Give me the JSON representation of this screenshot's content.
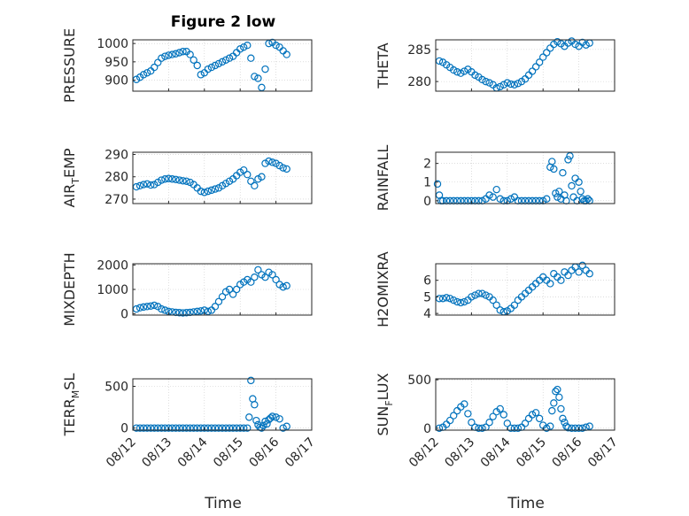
{
  "figure": {
    "title": "Figure 2 low",
    "xlabel": "Time",
    "x_ticks": [
      "08/12",
      "08/13",
      "08/14",
      "08/15",
      "08/16",
      "08/17"
    ],
    "marker_color": "#0072BD"
  },
  "chart_data": [
    {
      "type": "scatter",
      "title": "Figure 2 low",
      "ylabel": "PRESSURE",
      "ylabel_sub": "",
      "ylim": [
        870,
        1010
      ],
      "yticks": [
        900,
        950,
        1000
      ],
      "xlim": [
        0,
        5
      ],
      "x": [
        0.1,
        0.2,
        0.3,
        0.4,
        0.5,
        0.6,
        0.7,
        0.8,
        0.9,
        1.0,
        1.1,
        1.2,
        1.3,
        1.4,
        1.5,
        1.6,
        1.7,
        1.8,
        1.9,
        2.0,
        2.1,
        2.2,
        2.3,
        2.4,
        2.5,
        2.6,
        2.7,
        2.8,
        2.9,
        3.0,
        3.1,
        3.2,
        3.3,
        3.4,
        3.5,
        3.6,
        3.7,
        3.8,
        3.9,
        4.0,
        4.1,
        4.2,
        4.3
      ],
      "y": [
        902,
        908,
        915,
        920,
        925,
        935,
        948,
        960,
        965,
        968,
        970,
        972,
        975,
        978,
        978,
        970,
        955,
        940,
        915,
        920,
        930,
        935,
        940,
        945,
        950,
        955,
        960,
        965,
        975,
        985,
        990,
        995,
        960,
        910,
        905,
        880,
        930,
        1000,
        1003,
        995,
        990,
        980,
        970
      ]
    },
    {
      "type": "scatter",
      "ylabel": "THETA",
      "ylabel_sub": "",
      "ylim": [
        278.5,
        286.5
      ],
      "yticks": [
        280,
        285
      ],
      "xlim": [
        0,
        5
      ],
      "x": [
        0.1,
        0.2,
        0.3,
        0.4,
        0.5,
        0.6,
        0.7,
        0.8,
        0.9,
        1.0,
        1.1,
        1.2,
        1.3,
        1.4,
        1.5,
        1.6,
        1.7,
        1.8,
        1.9,
        2.0,
        2.1,
        2.2,
        2.3,
        2.4,
        2.5,
        2.6,
        2.7,
        2.8,
        2.9,
        3.0,
        3.1,
        3.2,
        3.3,
        3.4,
        3.5,
        3.6,
        3.7,
        3.8,
        3.9,
        4.0,
        4.1,
        4.2,
        4.3
      ],
      "y": [
        283.2,
        283.0,
        282.6,
        282.2,
        281.8,
        281.5,
        281.3,
        281.6,
        281.9,
        281.5,
        281.0,
        280.7,
        280.3,
        280.0,
        279.8,
        279.5,
        279.0,
        279.2,
        279.5,
        279.8,
        279.6,
        279.5,
        279.7,
        280.0,
        280.4,
        281.0,
        281.6,
        282.3,
        283.0,
        283.8,
        284.5,
        285.2,
        285.8,
        286.2,
        285.9,
        285.5,
        286.0,
        286.3,
        285.8,
        285.5,
        286.1,
        285.7,
        286.0
      ]
    },
    {
      "type": "scatter",
      "ylabel": "AIR",
      "ylabel_sub": "T",
      "ylabel_tail": "EMP",
      "ylim": [
        268,
        291
      ],
      "yticks": [
        270,
        280,
        290
      ],
      "xlim": [
        0,
        5
      ],
      "x": [
        0.1,
        0.2,
        0.3,
        0.4,
        0.5,
        0.6,
        0.7,
        0.8,
        0.9,
        1.0,
        1.1,
        1.2,
        1.3,
        1.4,
        1.5,
        1.6,
        1.7,
        1.8,
        1.9,
        2.0,
        2.1,
        2.2,
        2.3,
        2.4,
        2.5,
        2.6,
        2.7,
        2.8,
        2.9,
        3.0,
        3.1,
        3.2,
        3.3,
        3.4,
        3.5,
        3.6,
        3.7,
        3.8,
        3.9,
        4.0,
        4.1,
        4.2,
        4.3
      ],
      "y": [
        275.5,
        276,
        276.5,
        276.8,
        276.3,
        276.5,
        277.5,
        278.5,
        279,
        279.2,
        279,
        278.8,
        278.5,
        278.2,
        278,
        277.5,
        276.5,
        275,
        273.5,
        273,
        273.5,
        274,
        274.5,
        275,
        276,
        277,
        278,
        279,
        280.5,
        282,
        283,
        281,
        278,
        276,
        279,
        280,
        286,
        287,
        286.5,
        286,
        285,
        284,
        283.5
      ]
    },
    {
      "type": "scatter",
      "ylabel": "RAINFALL",
      "ylabel_sub": "",
      "ylim": [
        -0.15,
        2.6
      ],
      "yticks": [
        0,
        1,
        2
      ],
      "xlim": [
        0,
        5
      ],
      "x": [
        0.05,
        0.1,
        0.15,
        0.2,
        0.3,
        0.4,
        0.5,
        0.6,
        0.7,
        0.8,
        0.9,
        1.0,
        1.1,
        1.2,
        1.3,
        1.4,
        1.5,
        1.6,
        1.7,
        1.8,
        1.9,
        2.0,
        2.1,
        2.2,
        2.3,
        2.4,
        2.5,
        2.6,
        2.7,
        2.8,
        2.9,
        3.0,
        3.1,
        3.2,
        3.25,
        3.3,
        3.35,
        3.4,
        3.45,
        3.5,
        3.55,
        3.6,
        3.65,
        3.7,
        3.75,
        3.8,
        3.85,
        3.9,
        3.95,
        4.0,
        4.05,
        4.1,
        4.15,
        4.2,
        4.25,
        4.3
      ],
      "y": [
        0.9,
        0.3,
        0,
        0,
        0,
        0,
        0,
        0,
        0,
        0,
        0,
        0,
        0,
        0,
        0,
        0.1,
        0.3,
        0.2,
        0.6,
        0.1,
        0,
        0,
        0.1,
        0.2,
        0,
        0,
        0,
        0,
        0,
        0,
        0,
        0,
        0.1,
        1.8,
        2.1,
        1.7,
        0.4,
        0.2,
        0.5,
        0.1,
        1.5,
        0.3,
        0,
        2.2,
        2.4,
        0.8,
        0.2,
        1.2,
        0,
        1.0,
        0.5,
        0.1,
        0,
        0,
        0.1,
        0
      ]
    },
    {
      "type": "scatter",
      "ylabel": "MIXDEPTH",
      "ylabel_sub": "",
      "ylim": [
        -50,
        2050
      ],
      "yticks": [
        0,
        1000,
        2000
      ],
      "xlim": [
        0,
        5
      ],
      "x": [
        0.1,
        0.2,
        0.3,
        0.4,
        0.5,
        0.6,
        0.7,
        0.8,
        0.9,
        1.0,
        1.1,
        1.2,
        1.3,
        1.4,
        1.5,
        1.6,
        1.7,
        1.8,
        1.9,
        2.0,
        2.1,
        2.2,
        2.3,
        2.4,
        2.5,
        2.6,
        2.7,
        2.8,
        2.9,
        3.0,
        3.1,
        3.2,
        3.3,
        3.4,
        3.5,
        3.6,
        3.7,
        3.8,
        3.9,
        4.0,
        4.1,
        4.2,
        4.3
      ],
      "y": [
        200,
        250,
        280,
        300,
        320,
        350,
        300,
        200,
        150,
        100,
        80,
        60,
        50,
        40,
        50,
        60,
        80,
        100,
        120,
        150,
        100,
        150,
        300,
        500,
        700,
        900,
        1000,
        800,
        1000,
        1200,
        1300,
        1400,
        1300,
        1500,
        1800,
        1600,
        1500,
        1700,
        1600,
        1400,
        1200,
        1100,
        1150
      ]
    },
    {
      "type": "scatter",
      "ylabel": "H2OMIXRA",
      "ylabel_sub": "",
      "ylim": [
        3.9,
        7.0
      ],
      "yticks": [
        4,
        5,
        6
      ],
      "xlim": [
        0,
        5
      ],
      "x": [
        0.1,
        0.2,
        0.3,
        0.4,
        0.5,
        0.6,
        0.7,
        0.8,
        0.9,
        1.0,
        1.1,
        1.2,
        1.3,
        1.4,
        1.5,
        1.6,
        1.7,
        1.8,
        1.9,
        2.0,
        2.1,
        2.2,
        2.3,
        2.4,
        2.5,
        2.6,
        2.7,
        2.8,
        2.9,
        3.0,
        3.1,
        3.2,
        3.3,
        3.4,
        3.5,
        3.6,
        3.7,
        3.8,
        3.9,
        4.0,
        4.1,
        4.2,
        4.3
      ],
      "y": [
        4.9,
        4.9,
        4.95,
        4.9,
        4.8,
        4.7,
        4.65,
        4.7,
        4.8,
        5.0,
        5.1,
        5.2,
        5.2,
        5.1,
        5.0,
        4.8,
        4.5,
        4.2,
        4.1,
        4.15,
        4.3,
        4.5,
        4.8,
        5.0,
        5.2,
        5.4,
        5.6,
        5.8,
        6.0,
        6.2,
        6.0,
        5.8,
        6.4,
        6.2,
        6.0,
        6.5,
        6.3,
        6.6,
        6.8,
        6.5,
        6.9,
        6.6,
        6.4
      ]
    },
    {
      "type": "scatter",
      "ylabel": "TERR",
      "ylabel_sub": "M",
      "ylabel_tail": "SL",
      "ylim": [
        -25,
        590
      ],
      "yticks": [
        0,
        500
      ],
      "xlim": [
        0,
        5
      ],
      "x": [
        0.1,
        0.2,
        0.3,
        0.4,
        0.5,
        0.6,
        0.7,
        0.8,
        0.9,
        1.0,
        1.1,
        1.2,
        1.3,
        1.4,
        1.5,
        1.6,
        1.7,
        1.8,
        1.9,
        2.0,
        2.1,
        2.2,
        2.3,
        2.4,
        2.5,
        2.6,
        2.7,
        2.8,
        2.9,
        3.0,
        3.1,
        3.2,
        3.25,
        3.3,
        3.35,
        3.4,
        3.45,
        3.5,
        3.55,
        3.6,
        3.65,
        3.7,
        3.75,
        3.8,
        3.85,
        3.9,
        4.0,
        4.1,
        4.2,
        4.3
      ],
      "y": [
        0,
        0,
        0,
        0,
        0,
        0,
        0,
        0,
        0,
        0,
        0,
        0,
        0,
        0,
        0,
        0,
        0,
        0,
        0,
        0,
        0,
        0,
        0,
        0,
        0,
        0,
        0,
        0,
        0,
        0,
        0,
        0,
        130,
        570,
        350,
        280,
        90,
        40,
        10,
        0,
        30,
        80,
        50,
        100,
        120,
        140,
        130,
        110,
        0,
        20
      ]
    },
    {
      "type": "scatter",
      "ylabel": "SUN",
      "ylabel_sub": "F",
      "ylabel_tail": "LUX",
      "ylim": [
        -20,
        510
      ],
      "yticks": [
        0,
        500
      ],
      "xlim": [
        0,
        5
      ],
      "x": [
        0.1,
        0.2,
        0.3,
        0.4,
        0.5,
        0.6,
        0.7,
        0.8,
        0.9,
        1.0,
        1.1,
        1.2,
        1.3,
        1.4,
        1.5,
        1.6,
        1.7,
        1.8,
        1.9,
        2.0,
        2.1,
        2.2,
        2.3,
        2.4,
        2.5,
        2.6,
        2.7,
        2.8,
        2.9,
        3.0,
        3.1,
        3.2,
        3.25,
        3.3,
        3.35,
        3.4,
        3.45,
        3.5,
        3.55,
        3.6,
        3.65,
        3.7,
        3.8,
        3.9,
        4.0,
        4.1,
        4.2,
        4.3
      ],
      "y": [
        0,
        10,
        40,
        80,
        130,
        180,
        220,
        250,
        150,
        60,
        10,
        0,
        0,
        10,
        60,
        120,
        170,
        200,
        140,
        50,
        0,
        0,
        0,
        10,
        50,
        100,
        140,
        160,
        100,
        30,
        0,
        20,
        180,
        260,
        380,
        400,
        320,
        200,
        100,
        60,
        20,
        5,
        0,
        0,
        0,
        0,
        10,
        20
      ]
    }
  ]
}
